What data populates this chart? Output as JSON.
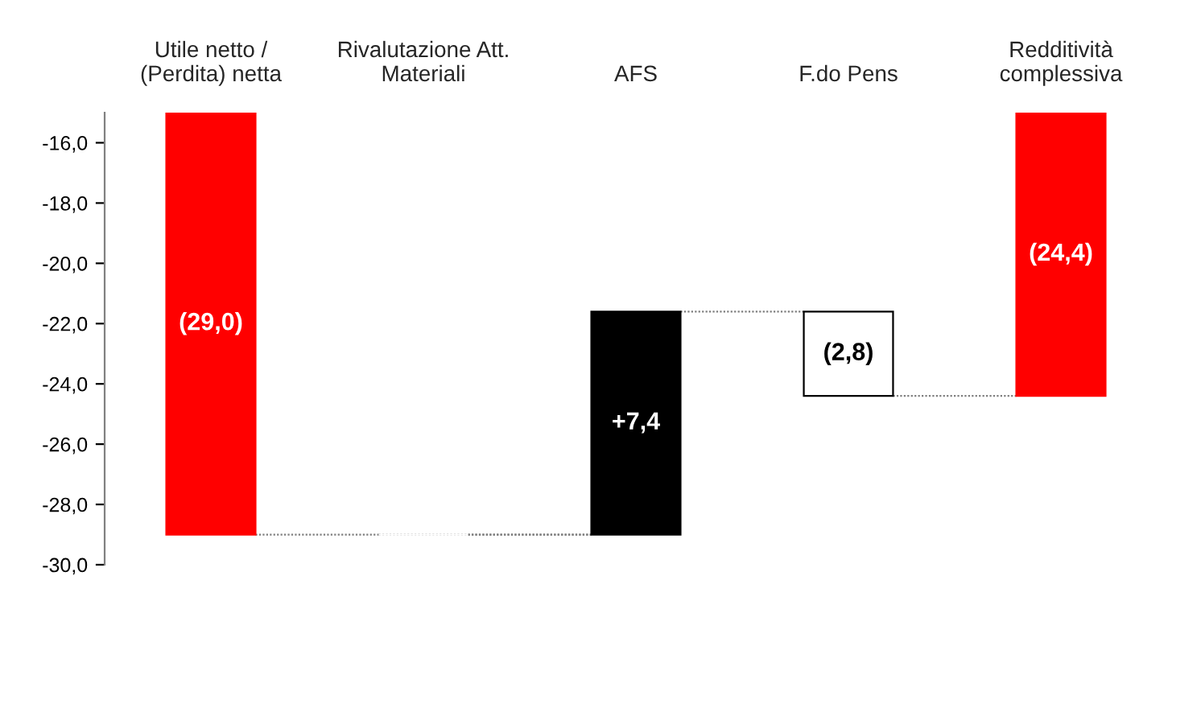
{
  "chart_data": {
    "type": "bar",
    "categories": [
      "Utile netto /\n(Perdita) netta",
      "Rivalutazione Att.\nMateriali",
      "AFS",
      "F.do Pens",
      "Redditività\ncomplessiva"
    ],
    "values": [
      -29.0,
      0,
      7.4,
      -2.8,
      -24.4
    ],
    "base": [
      0,
      -29.0,
      -29.0,
      -21.6,
      0
    ],
    "colors": [
      "#ff0000",
      "#ffffff",
      "#000000",
      "#ffffff",
      "#ff0000"
    ],
    "value_labels": [
      "(29,0)",
      null,
      "+7,4",
      "(2,8)",
      "(24,4)"
    ],
    "ylim": [
      -30,
      -15
    ],
    "yticks": [
      {
        "value": -30,
        "label": "-30,0"
      },
      {
        "value": -28,
        "label": "-28,0"
      },
      {
        "value": -26,
        "label": "-26,0"
      },
      {
        "value": -24,
        "label": "-24,0"
      },
      {
        "value": -22,
        "label": "-22,0"
      },
      {
        "value": -20,
        "label": "-20,0"
      },
      {
        "value": -18,
        "label": "-18,0"
      },
      {
        "value": -16,
        "label": "-16,0"
      }
    ],
    "grid": false,
    "legend": false
  }
}
